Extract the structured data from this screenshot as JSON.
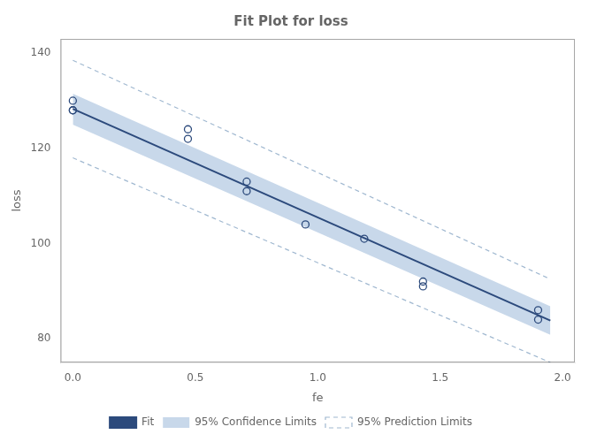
{
  "chart_data": {
    "type": "scatter",
    "title": "Fit Plot for loss",
    "x_label": "fe",
    "y_label": "loss",
    "xlim": [
      -0.05,
      2.05
    ],
    "ylim": [
      75,
      143
    ],
    "xticks": [
      {
        "value": 0.0,
        "label": "0.0"
      },
      {
        "value": 0.5,
        "label": "0.5"
      },
      {
        "value": 1.0,
        "label": "1.0"
      },
      {
        "value": 1.5,
        "label": "1.5"
      },
      {
        "value": 2.0,
        "label": "2.0"
      }
    ],
    "yticks": [
      80,
      100,
      120,
      140
    ],
    "grid": false,
    "legend": "bottom",
    "series": [
      {
        "type": "scatter",
        "marker": "circle",
        "color": "#2c4a7c",
        "x": [
          0.0,
          0.0,
          0.0,
          0.47,
          0.47,
          0.71,
          0.71,
          0.95,
          1.19,
          1.43,
          1.43,
          1.9,
          1.9
        ],
        "values": [
          130,
          128,
          128,
          124,
          122,
          113,
          111,
          104,
          101,
          92,
          91,
          86,
          84
        ]
      },
      {
        "name": "Fit",
        "type": "line",
        "line_style": "solid",
        "color": "#2c4a7c",
        "x": [
          0.0,
          1.95
        ],
        "values": [
          128.3,
          83.8
        ]
      },
      {
        "name": "95% Confidence Limits",
        "type": "band",
        "color": "#c8d8ea",
        "x": [
          0.0,
          1.95
        ],
        "lower": [
          125.0,
          80.8
        ],
        "upper": [
          131.5,
          86.8
        ]
      },
      {
        "name": "95% Prediction Limits",
        "type": "line",
        "line_style": "dashed",
        "color": "#a0b8d0",
        "x": [
          0.0,
          1.95
        ],
        "lower": [
          118.0,
          75.0
        ],
        "upper": [
          138.5,
          92.5
        ]
      }
    ]
  }
}
